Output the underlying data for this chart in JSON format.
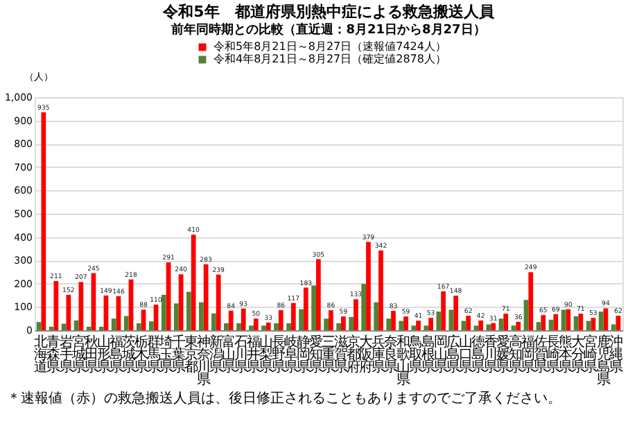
{
  "chart_data": {
    "type": "bar",
    "title": "令和5年　都道府県別熱中症による救急搬送人員",
    "subtitle": "前年同時期との比較（直近週：8月21日から8月27日）",
    "ylabel": "（人）",
    "categories": [
      "北海道",
      "青森県",
      "岩手県",
      "宮城県",
      "秋田県",
      "山形県",
      "福島県",
      "茨城県",
      "栃木県",
      "群馬県",
      "埼玉県",
      "千葉県",
      "東京都",
      "神奈川県",
      "新潟県",
      "富山県",
      "石川県",
      "福井県",
      "山梨県",
      "長野県",
      "岐阜県",
      "静岡県",
      "愛知県",
      "三重県",
      "滋賀県",
      "京都府",
      "大阪府",
      "兵庫県",
      "奈良県",
      "和歌山県",
      "鳥取県",
      "島根県",
      "岡山県",
      "広島県",
      "山口県",
      "徳島県",
      "香川県",
      "愛媛県",
      "高知県",
      "福岡県",
      "佐賀県",
      "長崎県",
      "熊本県",
      "大分県",
      "宮崎県",
      "鹿児島県",
      "沖縄県"
    ],
    "series": [
      {
        "name": "令和5年8月21日～8月27日（速報値7424人）",
        "color": "#ff0000",
        "values": [
          935,
          211,
          152,
          207,
          245,
          149,
          146,
          218,
          88,
          110,
          291,
          240,
          410,
          283,
          239,
          84,
          93,
          50,
          33,
          86,
          117,
          183,
          305,
          86,
          59,
          133,
          379,
          342,
          83,
          59,
          41,
          53,
          167,
          148,
          62,
          42,
          31,
          71,
          36,
          249,
          65,
          69,
          90,
          71,
          53,
          94,
          62
        ],
        "value_labels": [
          "935",
          "211",
          "152",
          "207",
          "245",
          "149",
          "146",
          "218",
          "88",
          "110",
          "291",
          "240",
          "410",
          "283",
          "239",
          "84",
          "93",
          "50",
          "33",
          "86",
          "117",
          "183",
          "305",
          "86",
          "59",
          "133",
          "379",
          "342",
          "83",
          "59",
          "41",
          "53",
          "167",
          "148",
          "62",
          "42",
          "31",
          "71",
          "36",
          "249",
          "65",
          "69",
          "90",
          "71",
          "53",
          "94",
          "62"
        ]
      },
      {
        "name": "令和4年8月21日～8月27日（確定値2878人）",
        "color": "#548235",
        "values": [
          35,
          15,
          28,
          42,
          15,
          15,
          50,
          61,
          30,
          38,
          152,
          115,
          165,
          120,
          72,
          30,
          30,
          20,
          20,
          30,
          30,
          90,
          192,
          50,
          30,
          57,
          199,
          120,
          50,
          40,
          20,
          20,
          80,
          88,
          40,
          20,
          25,
          50,
          20,
          130,
          35,
          45,
          88,
          60,
          40,
          80,
          25
        ]
      }
    ],
    "ylim": [
      0,
      1000
    ],
    "yticks": [
      0,
      100,
      200,
      300,
      400,
      500,
      600,
      700,
      800,
      900,
      {
        "value": 1000,
        "label": "1,000"
      }
    ],
    "grid": "y",
    "legend": "top",
    "annotations": [
      "＊速報値（赤）の救急搬送人員は、後日修正されることもありますのでご了承ください。"
    ]
  }
}
